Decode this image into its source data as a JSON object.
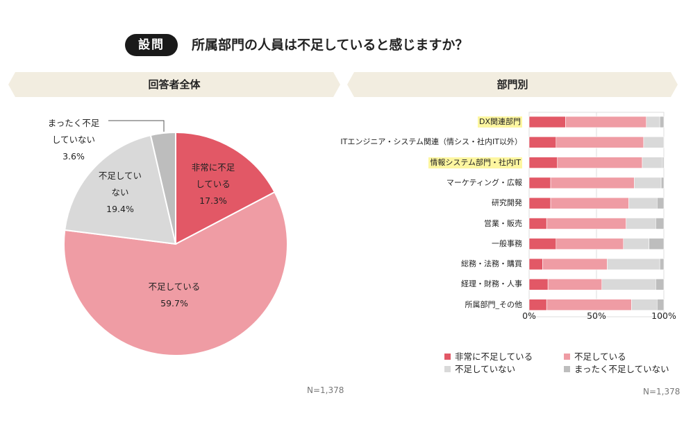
{
  "question": {
    "badge": "設問",
    "text": "所属部門の人員は不足していると感じますか？"
  },
  "panels": {
    "overall_title": "回答者全体",
    "by_dept_title": "部門別"
  },
  "colors": {
    "very_short": "#e25866",
    "short": "#ef9ca4",
    "not_short": "#d9d9d9",
    "not_at_all": "#bdbdbd",
    "band": "#f2ede0",
    "highlight": "#fdf6a0"
  },
  "pie_labels": {
    "s0_l1": "非常に不足",
    "s0_l2": "している",
    "s0_pct": "17.3%",
    "s1_l1": "不足している",
    "s1_pct": "59.7%",
    "s2_l1": "不足してい",
    "s2_l2": "ない",
    "s2_pct": "19.4%",
    "s3_l1": "まったく不足",
    "s3_l2": "していない",
    "s3_pct": "3.6%"
  },
  "notes": {
    "left_n": "N=1,378",
    "right_n": "N=1,378"
  },
  "chart_data": [
    {
      "type": "pie",
      "title": "回答者全体",
      "labels": [
        "非常に不足している",
        "不足している",
        "不足していない",
        "まったく不足していない"
      ],
      "values": [
        17.3,
        59.7,
        19.4,
        3.6
      ]
    },
    {
      "type": "bar",
      "orientation": "horizontal",
      "stacked": true,
      "percent": true,
      "title": "部門別",
      "categories": [
        "DX関連部門",
        "ITエンジニア・システム関連（情シス・社内IT以外）",
        "情報システム部門・社内IT",
        "マーケティング・広報",
        "研究開発",
        "営業・販売",
        "一般事務",
        "総務・法務・購買",
        "経理・財務・人事",
        "所属部門_その他"
      ],
      "highlighted_categories": [
        "DX関連部門",
        "情報システム部門・社内IT"
      ],
      "series": [
        {
          "name": "非常に不足している",
          "values": [
            27,
            20,
            21,
            16,
            16,
            13,
            20,
            10,
            14,
            13
          ]
        },
        {
          "name": "不足している",
          "values": [
            60,
            65,
            63,
            62,
            58,
            59,
            50,
            48,
            40,
            63
          ]
        },
        {
          "name": "不足していない",
          "values": [
            10,
            15,
            15,
            20,
            21,
            22,
            19,
            39,
            40,
            19
          ]
        },
        {
          "name": "まったく不足していない",
          "values": [
            3,
            0,
            1,
            2,
            5,
            6,
            11,
            3,
            6,
            5
          ]
        }
      ],
      "xlim": [
        0,
        100
      ],
      "xticks": [
        "0%",
        "50%",
        "100%"
      ],
      "legend": [
        "非常に不足している",
        "不足している",
        "不足していない",
        "まったく不足していない"
      ],
      "legend_position": "bottom"
    }
  ]
}
